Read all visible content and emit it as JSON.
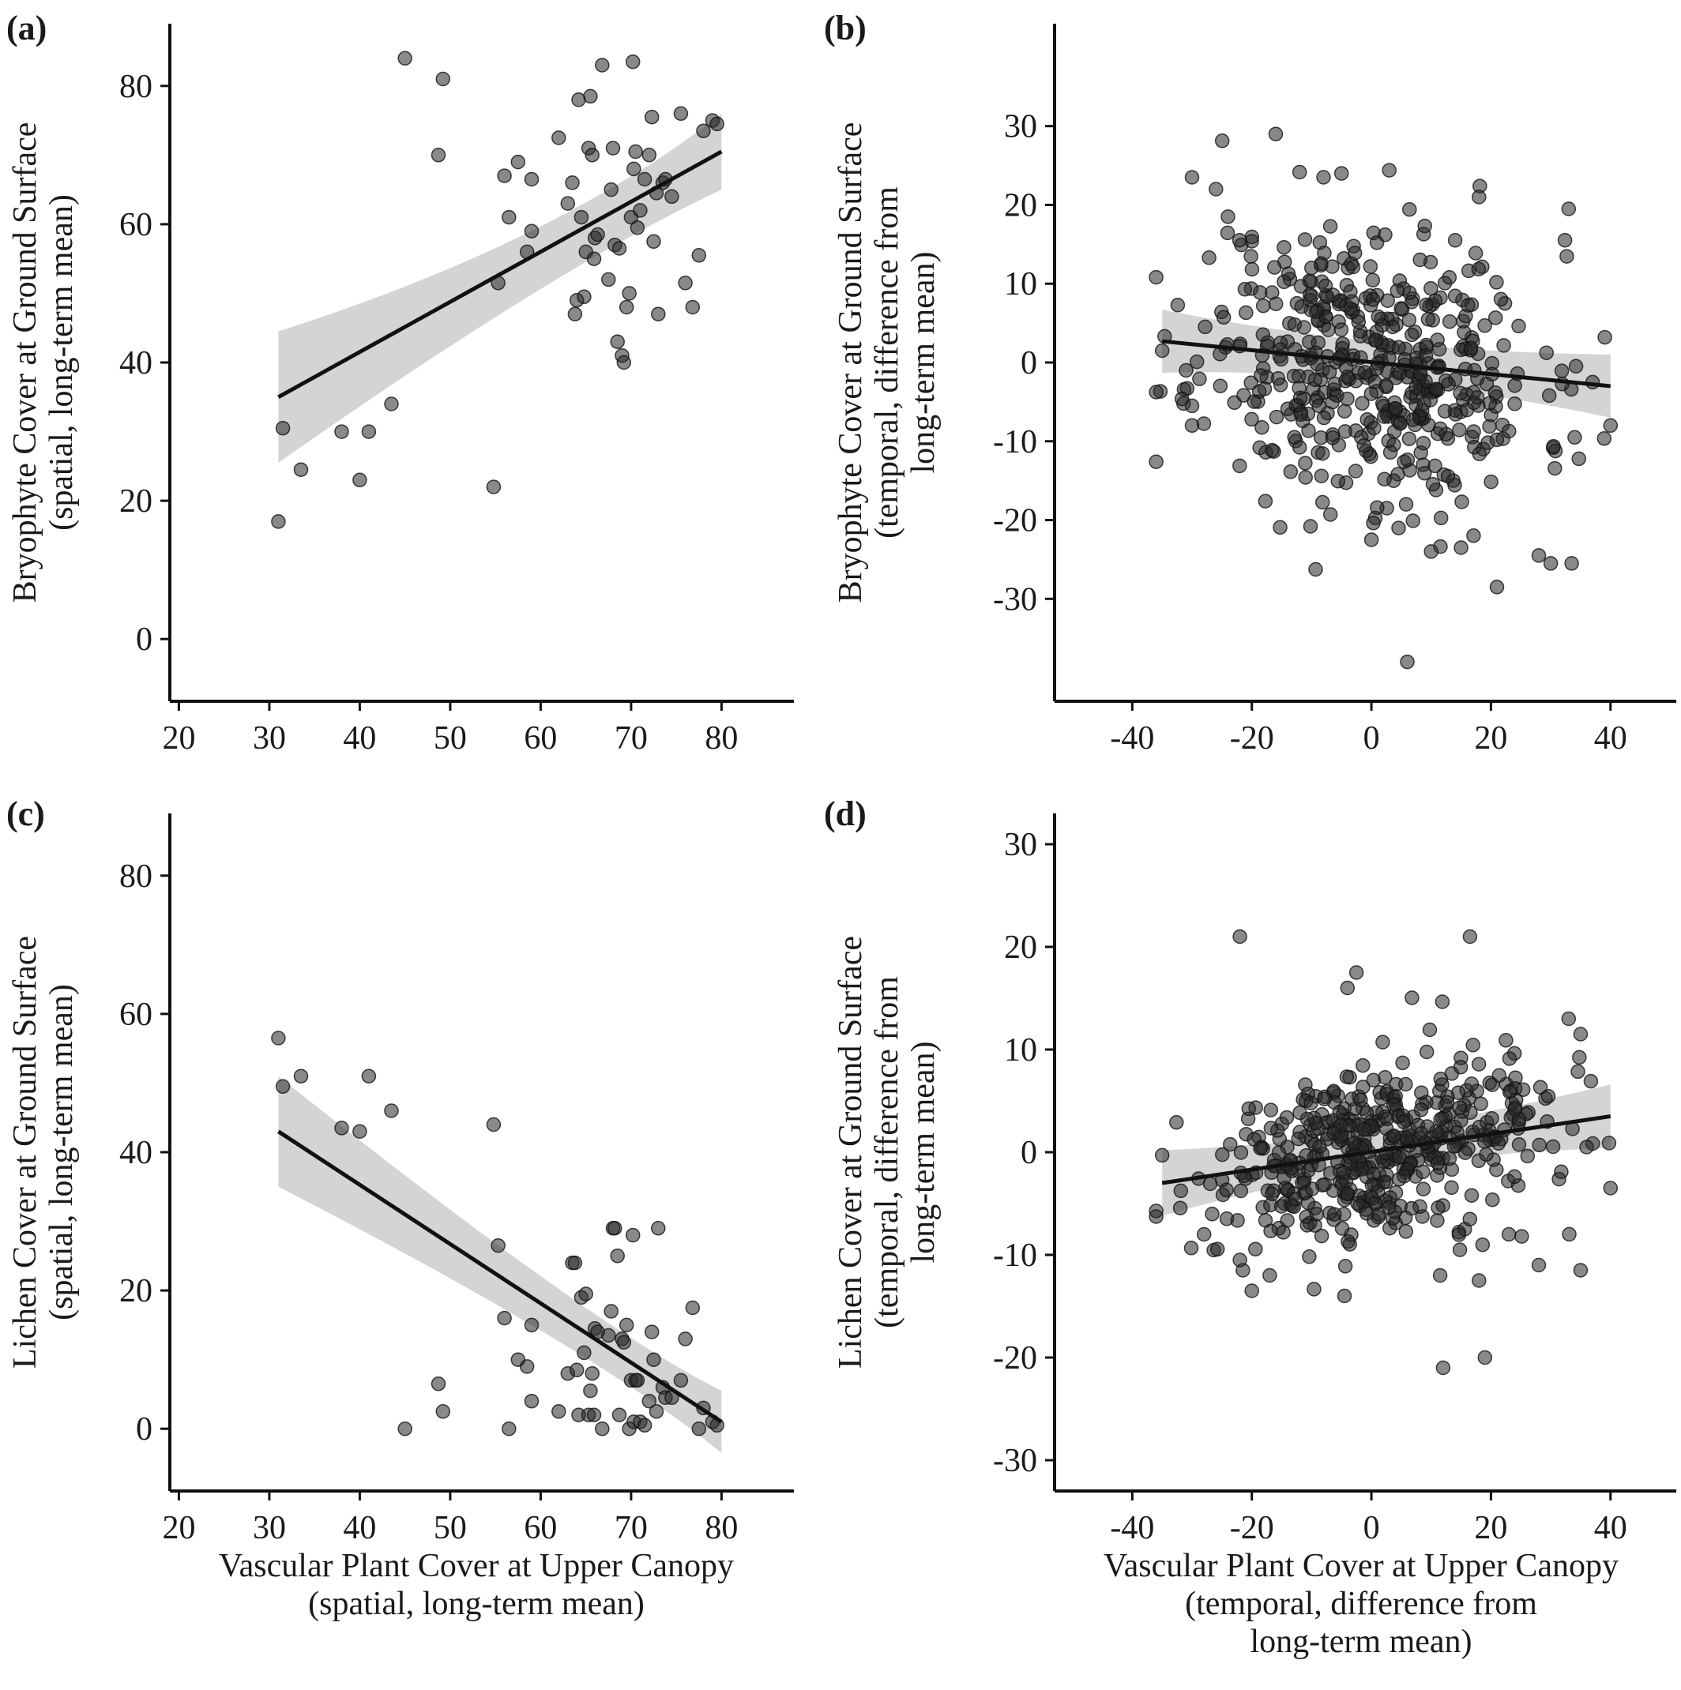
{
  "figure": {
    "x_titles": {
      "spatial": [
        "Vascular Plant Cover at Upper Canopy",
        "(spatial, long-term mean)"
      ],
      "temporal": [
        "Vascular Plant Cover at Upper Canopy",
        "(temporal, difference from",
        "long-term mean)"
      ]
    }
  },
  "chart_data": [
    {
      "panel": "(a)",
      "type": "scatter",
      "ylabel": [
        "Bryophyte Cover at Ground Surface",
        "(spatial, long-term mean)"
      ],
      "xlim": [
        19,
        88
      ],
      "ylim": [
        -9,
        89
      ],
      "xticks": [
        "20",
        "30",
        "40",
        "50",
        "60",
        "70",
        "80"
      ],
      "xtick_values": [
        20,
        30,
        40,
        50,
        60,
        70,
        80
      ],
      "yticks": [
        "0",
        "20",
        "40",
        "60",
        "80"
      ],
      "ytick_values": [
        0,
        20,
        40,
        60,
        80
      ],
      "trend": {
        "x0": 31,
        "y0": 35,
        "x1": 80,
        "y1": 70.5,
        "ci_low0": 25.5,
        "ci_high0": 44.5,
        "ci_low1": 65,
        "ci_high1": 76,
        "ci_low_mid": 54,
        "ci_high_mid": 57.5,
        "x_mid": 62
      },
      "points": [
        [
          31,
          17
        ],
        [
          31.5,
          30.5
        ],
        [
          33.5,
          24.5
        ],
        [
          38,
          30
        ],
        [
          40,
          23
        ],
        [
          41,
          30
        ],
        [
          43.5,
          34
        ],
        [
          45,
          84
        ],
        [
          48.7,
          70
        ],
        [
          49.2,
          81
        ],
        [
          54.8,
          22
        ],
        [
          55.3,
          51.5
        ],
        [
          56,
          67
        ],
        [
          56.5,
          61
        ],
        [
          57.5,
          69
        ],
        [
          58.5,
          56
        ],
        [
          59,
          59
        ],
        [
          59,
          66.5
        ],
        [
          62,
          72.5
        ],
        [
          63,
          63
        ],
        [
          63.5,
          66
        ],
        [
          63.8,
          47
        ],
        [
          64,
          49
        ],
        [
          64.2,
          78
        ],
        [
          64.5,
          61
        ],
        [
          64.8,
          49.5
        ],
        [
          65,
          56
        ],
        [
          65.3,
          71
        ],
        [
          65.5,
          78.5
        ],
        [
          65.7,
          70
        ],
        [
          65.9,
          55
        ],
        [
          66,
          58
        ],
        [
          66.3,
          58.5
        ],
        [
          66.8,
          83
        ],
        [
          67.5,
          52
        ],
        [
          67.8,
          65
        ],
        [
          68,
          71
        ],
        [
          68.2,
          57
        ],
        [
          68.5,
          43
        ],
        [
          68.7,
          56.5
        ],
        [
          69,
          41
        ],
        [
          69.2,
          40
        ],
        [
          69.5,
          48
        ],
        [
          69.8,
          50
        ],
        [
          70,
          61
        ],
        [
          70.2,
          83.5
        ],
        [
          70.3,
          68
        ],
        [
          70.5,
          70.5
        ],
        [
          70.7,
          59.5
        ],
        [
          71,
          62
        ],
        [
          71.5,
          66.5
        ],
        [
          72,
          70
        ],
        [
          72.3,
          75.5
        ],
        [
          72.5,
          57.5
        ],
        [
          72.8,
          64.5
        ],
        [
          73,
          47
        ],
        [
          73.5,
          66
        ],
        [
          73.8,
          66.5
        ],
        [
          74.5,
          64
        ],
        [
          75.5,
          76
        ],
        [
          76,
          51.5
        ],
        [
          76.8,
          48
        ],
        [
          77.5,
          55.5
        ],
        [
          78,
          73.5
        ],
        [
          79,
          75
        ],
        [
          79.5,
          74.5
        ]
      ]
    },
    {
      "panel": "(b)",
      "type": "scatter",
      "ylabel": [
        "Bryophyte Cover at Ground Surface",
        "(temporal, difference from",
        "long-term mean)"
      ],
      "xlim": [
        -53,
        51
      ],
      "ylim": [
        -43,
        43
      ],
      "xticks": [
        "-40",
        "-20",
        "0",
        "20",
        "40"
      ],
      "xtick_values": [
        -40,
        -20,
        0,
        20,
        40
      ],
      "yticks": [
        "-30",
        "-20",
        "-10",
        "0",
        "10",
        "20",
        "30"
      ],
      "ytick_values": [
        -30,
        -20,
        -10,
        0,
        10,
        20,
        30
      ],
      "trend": {
        "x0": -35,
        "y0": 2.7,
        "x1": 40,
        "y1": -3,
        "ci_low0": -1.3,
        "ci_high0": 6.7,
        "ci_low1": -7,
        "ci_high1": 1,
        "ci_low_mid": -0.6,
        "ci_high_mid": 1.4,
        "x_mid": 0
      },
      "random": {
        "seed": 11,
        "n": 480,
        "x_center": 0,
        "x_sd": 14,
        "x_min": -36,
        "x_max": 40,
        "y_sd": 9,
        "slope": -0.076,
        "intercept": 0.1
      },
      "extra_points": [
        [
          -35,
          1.5
        ],
        [
          -31,
          -1
        ],
        [
          -30,
          23.5
        ],
        [
          -30,
          -5.5
        ],
        [
          -30,
          -8
        ],
        [
          -26,
          22
        ],
        [
          -24,
          18.5
        ],
        [
          -16,
          29
        ],
        [
          -5,
          24
        ],
        [
          -8,
          23.5
        ],
        [
          0,
          -22.5
        ],
        [
          6,
          -38
        ],
        [
          18,
          21
        ],
        [
          33,
          19.5
        ],
        [
          21,
          -28.5
        ],
        [
          28,
          -24.5
        ],
        [
          30,
          -25.5
        ],
        [
          33.5,
          -25.5
        ],
        [
          40,
          -8
        ],
        [
          37,
          -2.5
        ],
        [
          34,
          -9.5
        ],
        [
          10,
          -24
        ],
        [
          15,
          -23.5
        ],
        [
          5.8,
          -18
        ]
      ]
    },
    {
      "panel": "(c)",
      "type": "scatter",
      "ylabel": [
        "Lichen Cover at Ground Surface",
        "(spatial, long-term mean)"
      ],
      "xlim": [
        19,
        88
      ],
      "ylim": [
        -9,
        89
      ],
      "xticks": [
        "20",
        "30",
        "40",
        "50",
        "60",
        "70",
        "80"
      ],
      "xtick_values": [
        20,
        30,
        40,
        50,
        60,
        70,
        80
      ],
      "yticks": [
        "0",
        "20",
        "40",
        "60",
        "80"
      ],
      "ytick_values": [
        0,
        20,
        40,
        60,
        80
      ],
      "trend": {
        "x0": 31,
        "y0": 43,
        "x1": 80,
        "y1": 1,
        "ci_low0": 35,
        "ci_high0": 51,
        "ci_low1": -3.5,
        "ci_high1": 5.5,
        "ci_low_mid": 11.5,
        "ci_high_mid": 14.5,
        "x_mid": 66
      },
      "points": [
        [
          31,
          56.5
        ],
        [
          31.5,
          49.5
        ],
        [
          33.5,
          51
        ],
        [
          38,
          43.5
        ],
        [
          40,
          43
        ],
        [
          41,
          51
        ],
        [
          43.5,
          46
        ],
        [
          45,
          0
        ],
        [
          48.7,
          6.5
        ],
        [
          49.2,
          2.5
        ],
        [
          54.8,
          44
        ],
        [
          55.3,
          26.5
        ],
        [
          56,
          16
        ],
        [
          56.5,
          0
        ],
        [
          57.5,
          10
        ],
        [
          58.5,
          9
        ],
        [
          59,
          15
        ],
        [
          59,
          4
        ],
        [
          62,
          2.5
        ],
        [
          63,
          8
        ],
        [
          63.5,
          24
        ],
        [
          63.8,
          24
        ],
        [
          64,
          8.5
        ],
        [
          64.2,
          2
        ],
        [
          64.5,
          19
        ],
        [
          64.8,
          11
        ],
        [
          65,
          19.5
        ],
        [
          65.3,
          2
        ],
        [
          65.5,
          5.5
        ],
        [
          65.7,
          8
        ],
        [
          65.9,
          2
        ],
        [
          66,
          14.5
        ],
        [
          66.3,
          14
        ],
        [
          66.8,
          0
        ],
        [
          67.5,
          13.5
        ],
        [
          67.8,
          17
        ],
        [
          68,
          29
        ],
        [
          68.2,
          29
        ],
        [
          68.5,
          25
        ],
        [
          68.7,
          2
        ],
        [
          69,
          13
        ],
        [
          69.2,
          12.5
        ],
        [
          69.5,
          15
        ],
        [
          69.8,
          0
        ],
        [
          70,
          7
        ],
        [
          70.2,
          28
        ],
        [
          70.3,
          1
        ],
        [
          70.5,
          7
        ],
        [
          70.7,
          7
        ],
        [
          71,
          1
        ],
        [
          71.5,
          0.5
        ],
        [
          72,
          4
        ],
        [
          72.3,
          14
        ],
        [
          72.5,
          10
        ],
        [
          72.8,
          2.5
        ],
        [
          73,
          29
        ],
        [
          73.5,
          6
        ],
        [
          73.8,
          4.5
        ],
        [
          74.5,
          4.5
        ],
        [
          75.5,
          7
        ],
        [
          76,
          13
        ],
        [
          76.8,
          17.5
        ],
        [
          77.5,
          0
        ],
        [
          78,
          3
        ],
        [
          79,
          1
        ],
        [
          79.5,
          0.5
        ]
      ]
    },
    {
      "panel": "(d)",
      "type": "scatter",
      "ylabel": [
        "Lichen Cover at Ground Surface",
        "(temporal, difference from",
        "long-term mean)"
      ],
      "xlim": [
        -53,
        51
      ],
      "ylim": [
        -33,
        33
      ],
      "xticks": [
        "-40",
        "-20",
        "0",
        "20",
        "40"
      ],
      "xtick_values": [
        -40,
        -20,
        0,
        20,
        40
      ],
      "yticks": [
        "-30",
        "-20",
        "-10",
        "0",
        "10",
        "20",
        "30"
      ],
      "ytick_values": [
        -30,
        -20,
        -10,
        0,
        10,
        20,
        30
      ],
      "trend": {
        "x0": -35,
        "y0": -3,
        "x1": 40,
        "y1": 3.5,
        "ci_low0": -6.2,
        "ci_high0": 0.2,
        "ci_low1": 0.4,
        "ci_high1": 6.6,
        "ci_low_mid": -0.3,
        "ci_high_mid": 0.9,
        "x_mid": 0
      },
      "random": {
        "seed": 29,
        "n": 470,
        "x_center": 0,
        "x_sd": 14,
        "x_min": -36,
        "x_max": 40,
        "y_sd": 4.2,
        "slope": 0.087,
        "intercept": 0.1
      },
      "extra_points": [
        [
          -22,
          21
        ],
        [
          16.5,
          21
        ],
        [
          -4,
          16
        ],
        [
          -2.5,
          17.5
        ],
        [
          12,
          -21
        ],
        [
          19,
          -20
        ],
        [
          18,
          -12.5
        ],
        [
          11.5,
          -12
        ],
        [
          -4.5,
          -14
        ],
        [
          -20,
          -13.5
        ],
        [
          -21.5,
          -11.5
        ],
        [
          -22,
          -10.5
        ],
        [
          35,
          -11.5
        ],
        [
          40,
          -3.5
        ],
        [
          36,
          0.5
        ],
        [
          33,
          13
        ],
        [
          35,
          11.5
        ],
        [
          -35,
          -0.3
        ],
        [
          -28,
          -8
        ],
        [
          -17,
          -12
        ],
        [
          28,
          -11
        ],
        [
          23,
          -8
        ]
      ]
    }
  ]
}
